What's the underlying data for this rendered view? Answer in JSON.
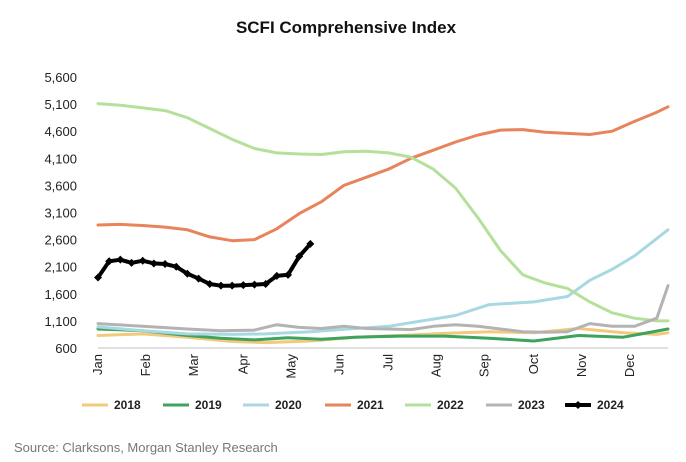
{
  "chart_data": {
    "type": "line",
    "title": "SCFI Comprehensive Index",
    "xlabel": "",
    "ylabel": "",
    "ylim": [
      600,
      5600
    ],
    "yticks": [
      600,
      1100,
      1600,
      2100,
      2600,
      3100,
      3600,
      4100,
      4600,
      5100,
      5600
    ],
    "ytick_labels": [
      "600",
      "1,100",
      "1,600",
      "2,100",
      "2,600",
      "3,100",
      "3,600",
      "4,100",
      "4,600",
      "5,100",
      "5,600"
    ],
    "x_unit": "week of year",
    "xlim": [
      1,
      52
    ],
    "months": [
      "Jan",
      "Feb",
      "Mar",
      "Apr",
      "May",
      "Jun",
      "Jul",
      "Aug",
      "Sep",
      "Oct",
      "Nov",
      "Dec"
    ],
    "grid": false,
    "legend_position": "bottom",
    "series": [
      {
        "name": "2018",
        "color": "#F2C97D",
        "width": 3,
        "markers": false,
        "values": [
          [
            1,
            830
          ],
          [
            5,
            860
          ],
          [
            9,
            800
          ],
          [
            13,
            720
          ],
          [
            16,
            700
          ],
          [
            20,
            730
          ],
          [
            24,
            800
          ],
          [
            28,
            830
          ],
          [
            32,
            870
          ],
          [
            36,
            900
          ],
          [
            40,
            880
          ],
          [
            44,
            960
          ],
          [
            48,
            880
          ],
          [
            51,
            850
          ],
          [
            52,
            880
          ]
        ]
      },
      {
        "name": "2019",
        "color": "#3DA35D",
        "width": 3,
        "markers": false,
        "values": [
          [
            1,
            950
          ],
          [
            5,
            920
          ],
          [
            9,
            830
          ],
          [
            12,
            780
          ],
          [
            15,
            750
          ],
          [
            18,
            790
          ],
          [
            21,
            760
          ],
          [
            24,
            800
          ],
          [
            28,
            820
          ],
          [
            32,
            820
          ],
          [
            36,
            780
          ],
          [
            40,
            730
          ],
          [
            44,
            830
          ],
          [
            48,
            800
          ],
          [
            52,
            950
          ]
        ]
      },
      {
        "name": "2020",
        "color": "#A8D8E2",
        "width": 3,
        "markers": false,
        "values": [
          [
            1,
            990
          ],
          [
            5,
            920
          ],
          [
            9,
            860
          ],
          [
            13,
            850
          ],
          [
            16,
            860
          ],
          [
            20,
            900
          ],
          [
            24,
            960
          ],
          [
            27,
            1000
          ],
          [
            30,
            1100
          ],
          [
            33,
            1200
          ],
          [
            36,
            1400
          ],
          [
            40,
            1450
          ],
          [
            43,
            1550
          ],
          [
            45,
            1850
          ],
          [
            47,
            2050
          ],
          [
            49,
            2300
          ],
          [
            52,
            2780
          ]
        ]
      },
      {
        "name": "2021",
        "color": "#E8835B",
        "width": 3,
        "markers": false,
        "values": [
          [
            1,
            2870
          ],
          [
            3,
            2880
          ],
          [
            5,
            2860
          ],
          [
            7,
            2830
          ],
          [
            9,
            2780
          ],
          [
            11,
            2650
          ],
          [
            13,
            2580
          ],
          [
            15,
            2600
          ],
          [
            17,
            2800
          ],
          [
            19,
            3080
          ],
          [
            21,
            3300
          ],
          [
            23,
            3600
          ],
          [
            25,
            3750
          ],
          [
            27,
            3900
          ],
          [
            29,
            4100
          ],
          [
            31,
            4250
          ],
          [
            33,
            4400
          ],
          [
            35,
            4530
          ],
          [
            37,
            4620
          ],
          [
            39,
            4630
          ],
          [
            41,
            4580
          ],
          [
            43,
            4560
          ],
          [
            45,
            4540
          ],
          [
            47,
            4600
          ],
          [
            49,
            4780
          ],
          [
            51,
            4950
          ],
          [
            52,
            5050
          ]
        ]
      },
      {
        "name": "2022",
        "color": "#B5E09B",
        "width": 3,
        "markers": false,
        "values": [
          [
            1,
            5110
          ],
          [
            3,
            5080
          ],
          [
            5,
            5030
          ],
          [
            7,
            4980
          ],
          [
            9,
            4850
          ],
          [
            11,
            4650
          ],
          [
            13,
            4450
          ],
          [
            15,
            4280
          ],
          [
            17,
            4200
          ],
          [
            19,
            4180
          ],
          [
            21,
            4170
          ],
          [
            23,
            4220
          ],
          [
            25,
            4230
          ],
          [
            27,
            4200
          ],
          [
            29,
            4120
          ],
          [
            31,
            3900
          ],
          [
            33,
            3550
          ],
          [
            35,
            3000
          ],
          [
            37,
            2400
          ],
          [
            39,
            1950
          ],
          [
            41,
            1800
          ],
          [
            43,
            1700
          ],
          [
            45,
            1450
          ],
          [
            47,
            1250
          ],
          [
            49,
            1150
          ],
          [
            51,
            1100
          ],
          [
            52,
            1100
          ]
        ]
      },
      {
        "name": "2023",
        "color": "#B3B3B3",
        "width": 3,
        "markers": false,
        "values": [
          [
            1,
            1050
          ],
          [
            5,
            1000
          ],
          [
            9,
            950
          ],
          [
            12,
            920
          ],
          [
            15,
            930
          ],
          [
            17,
            1030
          ],
          [
            19,
            980
          ],
          [
            21,
            960
          ],
          [
            23,
            1000
          ],
          [
            25,
            960
          ],
          [
            27,
            950
          ],
          [
            29,
            940
          ],
          [
            31,
            1000
          ],
          [
            33,
            1030
          ],
          [
            35,
            1000
          ],
          [
            37,
            950
          ],
          [
            39,
            900
          ],
          [
            41,
            890
          ],
          [
            43,
            900
          ],
          [
            45,
            1050
          ],
          [
            47,
            1000
          ],
          [
            49,
            1000
          ],
          [
            51,
            1150
          ],
          [
            52,
            1750
          ]
        ]
      },
      {
        "name": "2024",
        "color": "#000000",
        "width": 4,
        "markers": true,
        "values": [
          [
            1,
            1900
          ],
          [
            2,
            2200
          ],
          [
            3,
            2230
          ],
          [
            4,
            2170
          ],
          [
            5,
            2210
          ],
          [
            6,
            2160
          ],
          [
            7,
            2150
          ],
          [
            8,
            2100
          ],
          [
            9,
            1970
          ],
          [
            10,
            1880
          ],
          [
            11,
            1780
          ],
          [
            12,
            1750
          ],
          [
            13,
            1750
          ],
          [
            14,
            1760
          ],
          [
            15,
            1770
          ],
          [
            16,
            1780
          ],
          [
            17,
            1930
          ],
          [
            18,
            1950
          ],
          [
            19,
            2290
          ],
          [
            20,
            2520
          ]
        ]
      }
    ]
  },
  "source": "Source: Clarksons, Morgan Stanley Research"
}
